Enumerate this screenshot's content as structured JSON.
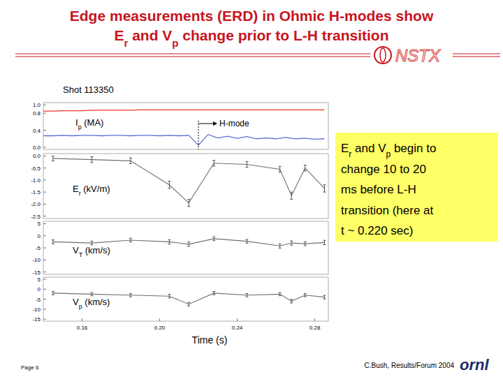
{
  "page": {
    "title": [
      [
        {
          "text": "Edge measurements (ERD) in Ohmic H-modes show"
        }
      ],
      [
        {
          "text": "E"
        },
        {
          "text": "r",
          "sub": true
        },
        {
          "text": " and V"
        },
        {
          "text": "p",
          "sub": true
        },
        {
          "text": " change prior to L-H transition"
        }
      ]
    ],
    "logo": "NSTX",
    "shot": "Shot 113350",
    "note": [
      [
        {
          "text": "E"
        },
        {
          "text": "r",
          "sub": true
        },
        {
          "text": " and V"
        },
        {
          "text": "p",
          "sub": true
        },
        {
          "text": " begin to"
        }
      ],
      [
        {
          "text": "change 10 to 20"
        }
      ],
      [
        {
          "text": "ms before L-H"
        }
      ],
      [
        {
          "text": "transition (here at"
        }
      ],
      [
        {
          "text": "t ~ 0.220 sec)"
        }
      ]
    ],
    "x_label": "Time (s)",
    "footer_left": "Page 6",
    "footer_right": "C.Bush,  Results/Forum 2004",
    "footer_logo": "ornl"
  },
  "chart_data": [
    {
      "type": "line",
      "x": [
        0.14,
        0.145,
        0.15,
        0.155,
        0.16,
        0.165,
        0.17,
        0.175,
        0.18,
        0.185,
        0.19,
        0.195,
        0.2,
        0.205,
        0.21,
        0.215,
        0.22,
        0.225,
        0.23,
        0.235,
        0.24,
        0.245,
        0.25,
        0.255,
        0.26,
        0.265,
        0.27,
        0.275,
        0.28,
        0.285
      ],
      "series": [
        {
          "color": "#e8372c",
          "values": [
            0.85,
            0.85,
            0.86,
            0.86,
            0.86,
            0.87,
            0.87,
            0.87,
            0.87,
            0.87,
            0.88,
            0.88,
            0.88,
            0.88,
            0.88,
            0.88,
            0.88,
            0.88,
            0.88,
            0.88,
            0.88,
            0.88,
            0.88,
            0.88,
            0.88,
            0.88,
            0.88,
            0.88,
            0.88,
            0.88
          ]
        },
        {
          "color": "#5a6fd6",
          "values": [
            0.27,
            0.27,
            0.28,
            0.27,
            0.28,
            0.28,
            0.27,
            0.28,
            0.28,
            0.27,
            0.28,
            0.28,
            0.27,
            0.28,
            0.27,
            0.28,
            0.05,
            0.3,
            0.22,
            0.26,
            0.21,
            0.25,
            0.2,
            0.22,
            0.2,
            0.23,
            0.2,
            0.21,
            0.19,
            0.2
          ]
        }
      ],
      "xlim": [
        0.14,
        0.287
      ],
      "ylim": [
        -0.05,
        1.05
      ],
      "yticks": [
        {
          "value": 0,
          "label": "0.0"
        },
        {
          "value": 0.4,
          "label": "0.4"
        },
        {
          "value": 0.8,
          "label": "0.8"
        },
        {
          "value": 1,
          "label": "1.0"
        }
      ],
      "y_label": [
        {
          "text": "I"
        },
        {
          "text": "p",
          "sub": true
        },
        {
          "text": " (MA)"
        }
      ],
      "annotations": [
        {
          "text": "H-mode",
          "x": 0.22
        }
      ],
      "tick_labels": "y",
      "grid": false,
      "marker": "none",
      "line_style": "solid"
    },
    {
      "type": "line",
      "x": [
        0.145,
        0.165,
        0.185,
        0.205,
        0.215,
        0.228,
        0.245,
        0.262,
        0.268,
        0.275,
        0.285
      ],
      "series": [
        {
          "color": "#707070",
          "values": [
            -0.1,
            -0.15,
            -0.2,
            -1.2,
            -1.95,
            -0.3,
            -0.35,
            -0.55,
            -1.65,
            -0.5,
            -1.35
          ],
          "errors": [
            0.1,
            0.12,
            0.12,
            0.15,
            0.15,
            0.12,
            0.12,
            0.12,
            0.15,
            0.12,
            0.15
          ]
        }
      ],
      "xlim": [
        0.14,
        0.287
      ],
      "ylim": [
        -2.6,
        0.1
      ],
      "yticks": [
        {
          "value": 0,
          "label": "0.0"
        },
        -0.5,
        {
          "value": -1,
          "label": "-1.0"
        },
        -1.5,
        {
          "value": -2,
          "label": "-2.0"
        },
        -2.5
      ],
      "y_label": [
        {
          "text": "E"
        },
        {
          "text": "r",
          "sub": true
        },
        {
          "text": " (kV/m)"
        }
      ],
      "tick_labels": "y",
      "grid": false,
      "marker": "none",
      "line_style": "solid"
    },
    {
      "type": "line",
      "x": [
        0.145,
        0.165,
        0.185,
        0.205,
        0.215,
        0.228,
        0.245,
        0.262,
        0.268,
        0.275,
        0.285
      ],
      "series": [
        {
          "color": "#707070",
          "values": [
            -2.5,
            -3,
            -1.8,
            -2.5,
            -3.5,
            -1.2,
            -2.3,
            -4.2,
            -3,
            -3.3,
            -2.8
          ],
          "errors": [
            0.8,
            0.8,
            0.8,
            0.9,
            0.9,
            0.8,
            0.8,
            0.9,
            0.9,
            0.8,
            0.9
          ]
        }
      ],
      "xlim": [
        0.14,
        0.287
      ],
      "ylim": [
        -16,
        6
      ],
      "yticks": [
        5,
        0,
        -5,
        -10,
        -15
      ],
      "y_label": [
        {
          "text": "V"
        },
        {
          "text": "T",
          "sub": true
        },
        {
          "text": " (km/s)"
        }
      ],
      "tick_labels": "y",
      "grid": false,
      "marker": "none",
      "line_style": "solid"
    },
    {
      "type": "line",
      "x": [
        0.145,
        0.165,
        0.185,
        0.205,
        0.215,
        0.228,
        0.245,
        0.262,
        0.268,
        0.275,
        0.285
      ],
      "series": [
        {
          "color": "#707070",
          "values": [
            -2,
            -2.5,
            -3,
            -3.5,
            -7.5,
            -2,
            -3,
            -2.5,
            -6,
            -3,
            -4
          ],
          "errors": [
            0.8,
            0.8,
            0.8,
            0.9,
            0.9,
            0.8,
            0.8,
            0.8,
            0.9,
            0.8,
            0.9
          ]
        }
      ],
      "xlim": [
        0.14,
        0.287
      ],
      "ylim": [
        -16,
        6
      ],
      "yticks": [
        5,
        0,
        -5,
        -10,
        -15
      ],
      "xticks": [
        0.16,
        {
          "value": 0.2,
          "label": "0.20"
        },
        0.24,
        0.28
      ],
      "y_label": [
        {
          "text": "V"
        },
        {
          "text": "p",
          "sub": true
        },
        {
          "text": " (km/s)"
        }
      ],
      "tick_labels": true,
      "grid": false,
      "marker": "none",
      "line_style": "solid"
    }
  ]
}
